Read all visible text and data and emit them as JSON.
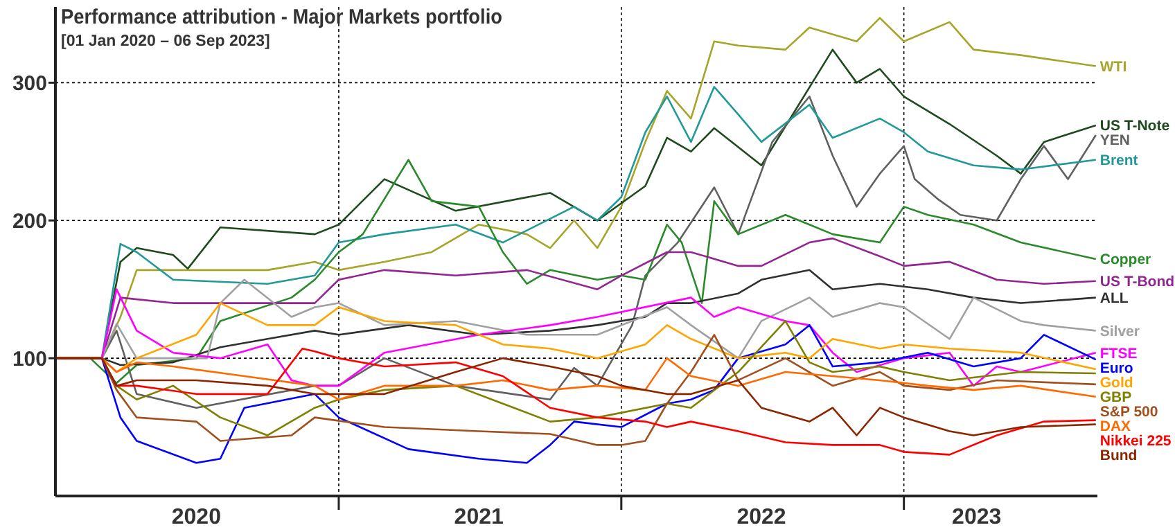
{
  "chart_data": {
    "type": "line",
    "title": "Performance attribution - Major Markets portfolio",
    "subtitle": "[01 Jan 2020 – 06 Sep 2023]",
    "xlim": [
      "2020-01-01",
      "2023-09-08"
    ],
    "ylim": [
      0,
      355
    ],
    "yticks": [
      100,
      200,
      300
    ],
    "xticks": [
      {
        "value": "2020-07-01",
        "label": "2020"
      },
      {
        "value": "2021-01-01",
        "label": null
      },
      {
        "value": "2021-07-01",
        "label": "2021"
      },
      {
        "value": "2022-01-01",
        "label": null
      },
      {
        "value": "2022-07-01",
        "label": "2022"
      },
      {
        "value": "2023-01-01",
        "label": null
      },
      {
        "value": "2023-04-05",
        "label": "2023"
      }
    ],
    "grid": true,
    "line_style": "solid",
    "marker": "none",
    "series": [
      {
        "name": "WTI",
        "color": "#a5a52a",
        "x": [
          "2020-01-01",
          "2020-03-01",
          "2020-03-25",
          "2020-04-15",
          "2020-07-01",
          "2020-10-01",
          "2020-12-01",
          "2021-01-01",
          "2021-03-01",
          "2021-05-01",
          "2021-07-01",
          "2021-09-01",
          "2021-10-01",
          "2021-11-01",
          "2021-12-01",
          "2022-01-01",
          "2022-02-01",
          "2022-03-01",
          "2022-04-01",
          "2022-05-01",
          "2022-06-01",
          "2022-08-01",
          "2022-09-01",
          "2022-11-01",
          "2022-12-01",
          "2023-01-01",
          "2023-03-01",
          "2023-04-01",
          "2023-06-01",
          "2023-09-06"
        ],
        "values": [
          100,
          100,
          130,
          164,
          164,
          164,
          170,
          164,
          170,
          177,
          197,
          190,
          180,
          200,
          180,
          210,
          257,
          294,
          274,
          330,
          327,
          324,
          340,
          330,
          347,
          330,
          344,
          324,
          320,
          312
        ]
      },
      {
        "name": "US T-Note",
        "color": "#1e4a1e",
        "x": [
          "2020-01-01",
          "2020-03-01",
          "2020-03-25",
          "2020-04-15",
          "2020-06-01",
          "2020-06-20",
          "2020-08-01",
          "2020-12-01",
          "2021-01-01",
          "2021-03-01",
          "2021-06-01",
          "2021-10-01",
          "2021-12-01",
          "2022-02-01",
          "2022-03-01",
          "2022-04-01",
          "2022-05-01",
          "2022-07-01",
          "2022-10-01",
          "2022-11-01",
          "2022-12-01",
          "2023-01-01",
          "2023-03-01",
          "2023-05-01",
          "2023-06-01",
          "2023-07-01",
          "2023-09-06"
        ],
        "values": [
          100,
          100,
          170,
          180,
          175,
          165,
          195,
          190,
          197,
          230,
          207,
          220,
          200,
          225,
          260,
          250,
          267,
          240,
          324,
          300,
          310,
          290,
          270,
          247,
          234,
          257,
          269
        ]
      },
      {
        "name": "YEN",
        "color": "#606060",
        "x": [
          "2020-01-01",
          "2020-03-01",
          "2020-03-20",
          "2020-04-15",
          "2020-07-01",
          "2020-12-01",
          "2021-01-01",
          "2021-03-01",
          "2021-06-01",
          "2021-10-01",
          "2021-11-01",
          "2021-12-01",
          "2022-01-15",
          "2022-02-01",
          "2022-03-15",
          "2022-05-01",
          "2022-06-01",
          "2022-07-15",
          "2022-09-01",
          "2022-10-01",
          "2022-11-01",
          "2022-12-01",
          "2023-01-01",
          "2023-01-15",
          "2023-02-15",
          "2023-03-15",
          "2023-05-01",
          "2023-06-01",
          "2023-07-01",
          "2023-08-01",
          "2023-09-06"
        ],
        "values": [
          100,
          100,
          120,
          74,
          64,
          80,
          80,
          100,
          80,
          70,
          93,
          80,
          124,
          160,
          184,
          224,
          190,
          257,
          290,
          247,
          210,
          234,
          254,
          230,
          215,
          204,
          200,
          230,
          254,
          230,
          262
        ]
      },
      {
        "name": "Brent",
        "color": "#219999",
        "x": [
          "2020-01-01",
          "2020-03-01",
          "2020-03-25",
          "2020-04-15",
          "2020-06-01",
          "2020-10-01",
          "2020-12-01",
          "2021-01-01",
          "2021-03-01",
          "2021-06-01",
          "2021-08-01",
          "2021-11-01",
          "2021-12-01",
          "2022-01-01",
          "2022-02-01",
          "2022-03-01",
          "2022-04-01",
          "2022-05-01",
          "2022-06-01",
          "2022-07-01",
          "2022-09-01",
          "2022-10-01",
          "2022-12-01",
          "2023-01-01",
          "2023-02-01",
          "2023-04-01",
          "2023-06-01",
          "2023-09-06"
        ],
        "values": [
          100,
          100,
          183,
          177,
          157,
          154,
          160,
          184,
          190,
          197,
          184,
          210,
          200,
          217,
          264,
          290,
          257,
          297,
          277,
          257,
          284,
          260,
          274,
          264,
          250,
          240,
          237,
          244
        ]
      },
      {
        "name": "Copper",
        "color": "#2a8a2a",
        "x": [
          "2020-01-01",
          "2020-02-15",
          "2020-03-20",
          "2020-04-15",
          "2020-07-01",
          "2020-08-01",
          "2020-11-01",
          "2020-12-01",
          "2021-01-01",
          "2021-02-01",
          "2021-04-01",
          "2021-05-01",
          "2021-07-01",
          "2021-08-01",
          "2021-09-01",
          "2021-10-01",
          "2021-12-01",
          "2022-01-01",
          "2022-02-01",
          "2022-03-01",
          "2022-03-20",
          "2022-04-15",
          "2022-05-01",
          "2022-06-01",
          "2022-08-01",
          "2022-09-01",
          "2022-10-01",
          "2022-12-01",
          "2023-01-01",
          "2023-02-01",
          "2023-04-01",
          "2023-06-01",
          "2023-09-06"
        ],
        "values": [
          100,
          100,
          82,
          95,
          100,
          127,
          144,
          157,
          177,
          190,
          244,
          214,
          210,
          177,
          154,
          164,
          157,
          160,
          157,
          197,
          184,
          140,
          214,
          190,
          204,
          197,
          190,
          184,
          210,
          204,
          197,
          184,
          172
        ]
      },
      {
        "name": "US T-Bond",
        "color": "#932593",
        "x": [
          "2020-01-01",
          "2020-03-01",
          "2020-03-25",
          "2020-06-01",
          "2020-12-01",
          "2021-01-01",
          "2021-03-01",
          "2021-06-01",
          "2021-09-01",
          "2021-12-01",
          "2022-01-01",
          "2022-03-01",
          "2022-04-01",
          "2022-06-01",
          "2022-07-01",
          "2022-09-01",
          "2022-10-01",
          "2022-12-01",
          "2023-01-01",
          "2023-03-01",
          "2023-05-01",
          "2023-07-01",
          "2023-09-06"
        ],
        "values": [
          100,
          100,
          144,
          140,
          140,
          157,
          164,
          160,
          164,
          150,
          160,
          177,
          177,
          167,
          167,
          184,
          187,
          174,
          167,
          170,
          157,
          154,
          156
        ]
      },
      {
        "name": "ALL",
        "color": "#303030",
        "x": [
          "2020-01-01",
          "2020-03-01",
          "2020-03-25",
          "2020-06-01",
          "2020-08-01",
          "2020-10-01",
          "2020-12-01",
          "2021-01-01",
          "2021-04-01",
          "2021-07-01",
          "2021-10-01",
          "2021-12-01",
          "2022-02-01",
          "2022-03-01",
          "2022-04-01",
          "2022-06-01",
          "2022-07-01",
          "2022-09-01",
          "2022-10-01",
          "2022-12-01",
          "2023-02-01",
          "2023-04-01",
          "2023-06-01",
          "2023-09-06"
        ],
        "values": [
          100,
          100,
          95,
          97,
          108,
          114,
          120,
          117,
          124,
          117,
          120,
          124,
          130,
          140,
          140,
          147,
          157,
          164,
          150,
          154,
          150,
          144,
          140,
          144
        ]
      },
      {
        "name": "Silver",
        "color": "#a0a0a0",
        "x": [
          "2020-01-01",
          "2020-03-01",
          "2020-03-20",
          "2020-04-15",
          "2020-07-15",
          "2020-08-01",
          "2020-09-01",
          "2020-11-01",
          "2020-12-01",
          "2021-01-01",
          "2021-03-01",
          "2021-06-01",
          "2021-09-01",
          "2021-12-01",
          "2022-03-01",
          "2022-04-01",
          "2022-06-01",
          "2022-07-01",
          "2022-09-01",
          "2022-10-01",
          "2022-12-01",
          "2023-01-01",
          "2023-03-01",
          "2023-04-01",
          "2023-06-01",
          "2023-07-01",
          "2023-09-06"
        ],
        "values": [
          100,
          100,
          125,
          100,
          100,
          140,
          157,
          130,
          137,
          140,
          124,
          127,
          117,
          117,
          137,
          124,
          100,
          127,
          144,
          130,
          140,
          137,
          114,
          144,
          127,
          124,
          120
        ]
      },
      {
        "name": "FTSE",
        "color": "#ff00ff",
        "x": [
          "2020-01-01",
          "2020-03-01",
          "2020-03-20",
          "2020-04-15",
          "2020-06-01",
          "2020-08-01",
          "2020-10-01",
          "2020-11-01",
          "2020-12-01",
          "2021-01-01",
          "2021-03-01",
          "2021-07-01",
          "2021-10-01",
          "2021-12-01",
          "2022-04-01",
          "2022-05-01",
          "2022-06-01",
          "2022-08-01",
          "2022-09-01",
          "2022-10-01",
          "2022-11-01",
          "2023-01-01",
          "2023-03-01",
          "2023-04-01",
          "2023-05-01",
          "2023-06-01",
          "2023-09-06"
        ],
        "values": [
          100,
          100,
          150,
          120,
          104,
          100,
          110,
          84,
          80,
          80,
          104,
          117,
          124,
          130,
          144,
          130,
          137,
          127,
          124,
          104,
          90,
          100,
          104,
          80,
          94,
          90,
          104
        ]
      },
      {
        "name": "Euro",
        "color": "#0000ff",
        "x": [
          "2020-01-01",
          "2020-03-01",
          "2020-03-25",
          "2020-04-15",
          "2020-07-01",
          "2020-08-01",
          "2020-09-01",
          "2020-12-01",
          "2021-01-01",
          "2021-04-01",
          "2021-07-01",
          "2021-09-01",
          "2021-10-01",
          "2021-11-01",
          "2022-01-01",
          "2022-03-01",
          "2022-04-01",
          "2022-05-01",
          "2022-06-01",
          "2022-08-01",
          "2022-09-01",
          "2022-10-01",
          "2022-12-01",
          "2023-02-01",
          "2023-04-01",
          "2023-06-01",
          "2023-07-01",
          "2023-09-06"
        ],
        "values": [
          100,
          100,
          57,
          40,
          24,
          27,
          64,
          74,
          57,
          34,
          27,
          24,
          37,
          54,
          50,
          67,
          70,
          77,
          100,
          110,
          124,
          94,
          97,
          104,
          94,
          100,
          117,
          99
        ]
      },
      {
        "name": "Gold",
        "color": "#ffa500",
        "x": [
          "2020-01-01",
          "2020-03-01",
          "2020-03-20",
          "2020-04-15",
          "2020-07-01",
          "2020-08-01",
          "2020-10-01",
          "2020-12-01",
          "2021-01-01",
          "2021-03-01",
          "2021-06-01",
          "2021-08-01",
          "2021-10-01",
          "2021-12-01",
          "2022-02-01",
          "2022-03-01",
          "2022-04-01",
          "2022-06-01",
          "2022-08-01",
          "2022-09-01",
          "2022-10-01",
          "2022-12-01",
          "2023-01-01",
          "2023-03-01",
          "2023-06-01",
          "2023-09-06"
        ],
        "values": [
          100,
          100,
          90,
          100,
          117,
          140,
          124,
          124,
          137,
          127,
          124,
          110,
          107,
          100,
          110,
          124,
          114,
          100,
          104,
          100,
          114,
          107,
          110,
          107,
          104,
          92
        ]
      },
      {
        "name": "GBP",
        "color": "#808000",
        "x": [
          "2020-01-01",
          "2020-03-01",
          "2020-03-20",
          "2020-04-15",
          "2020-06-01",
          "2020-08-01",
          "2020-10-01",
          "2020-12-01",
          "2021-01-01",
          "2021-03-01",
          "2021-06-01",
          "2021-08-01",
          "2021-10-01",
          "2021-12-01",
          "2022-03-01",
          "2022-04-01",
          "2022-06-01",
          "2022-08-01",
          "2022-09-01",
          "2022-10-01",
          "2022-12-01",
          "2023-01-01",
          "2023-03-01",
          "2023-06-01",
          "2023-09-06"
        ],
        "values": [
          100,
          100,
          80,
          70,
          80,
          57,
          44,
          64,
          70,
          77,
          80,
          67,
          54,
          57,
          67,
          64,
          90,
          127,
          97,
          90,
          94,
          90,
          84,
          90,
          89
        ]
      },
      {
        "name": "S&P 500",
        "color": "#a0501e",
        "x": [
          "2020-01-01",
          "2020-03-01",
          "2020-03-20",
          "2020-04-15",
          "2020-07-01",
          "2020-08-01",
          "2020-11-01",
          "2020-12-01",
          "2021-03-01",
          "2021-07-01",
          "2021-10-01",
          "2021-12-01",
          "2022-01-01",
          "2022-02-01",
          "2022-03-01",
          "2022-04-01",
          "2022-05-01",
          "2022-06-01",
          "2022-08-01",
          "2022-10-01",
          "2022-12-01",
          "2023-01-01",
          "2023-03-01",
          "2023-05-01",
          "2023-09-06"
        ],
        "values": [
          100,
          100,
          77,
          57,
          54,
          40,
          44,
          57,
          50,
          47,
          45,
          37,
          37,
          40,
          67,
          90,
          117,
          84,
          100,
          80,
          90,
          80,
          77,
          84,
          81
        ]
      },
      {
        "name": "DAX",
        "color": "#ff6a00",
        "x": [
          "2020-01-01",
          "2020-03-01",
          "2020-03-20",
          "2020-04-15",
          "2020-06-01",
          "2020-09-01",
          "2020-12-01",
          "2021-01-01",
          "2021-03-01",
          "2021-06-01",
          "2021-08-01",
          "2021-10-01",
          "2021-12-01",
          "2022-02-01",
          "2022-03-01",
          "2022-04-01",
          "2022-06-01",
          "2022-08-01",
          "2022-10-01",
          "2022-12-01",
          "2023-02-01",
          "2023-04-01",
          "2023-06-01",
          "2023-09-06"
        ],
        "values": [
          100,
          100,
          90,
          97,
          94,
          87,
          80,
          70,
          80,
          80,
          84,
          77,
          80,
          77,
          100,
          87,
          80,
          90,
          87,
          84,
          80,
          77,
          80,
          72
        ]
      },
      {
        "name": "Nikkei 225",
        "color": "#ff0000",
        "x": [
          "2020-01-01",
          "2020-03-01",
          "2020-03-20",
          "2020-04-15",
          "2020-07-01",
          "2020-10-01",
          "2020-11-15",
          "2020-12-01",
          "2021-01-01",
          "2021-03-01",
          "2021-06-01",
          "2021-08-01",
          "2021-10-01",
          "2021-12-01",
          "2022-02-01",
          "2022-03-01",
          "2022-04-01",
          "2022-06-01",
          "2022-08-01",
          "2022-10-01",
          "2022-12-01",
          "2023-01-01",
          "2023-03-01",
          "2023-05-01",
          "2023-07-01",
          "2023-09-06"
        ],
        "values": [
          100,
          100,
          80,
          80,
          74,
          74,
          107,
          105,
          100,
          94,
          97,
          87,
          64,
          57,
          54,
          50,
          54,
          47,
          39,
          37,
          37,
          32,
          30,
          44,
          54,
          55
        ]
      },
      {
        "name": "Bund",
        "color": "#8b2500",
        "x": [
          "2020-01-01",
          "2020-03-01",
          "2020-03-20",
          "2020-04-15",
          "2020-07-01",
          "2020-10-01",
          "2020-12-01",
          "2021-03-01",
          "2021-06-01",
          "2021-08-01",
          "2021-10-01",
          "2021-12-01",
          "2022-01-01",
          "2022-03-01",
          "2022-04-01",
          "2022-06-01",
          "2022-07-01",
          "2022-09-01",
          "2022-10-01",
          "2022-11-01",
          "2022-12-01",
          "2023-01-01",
          "2023-03-01",
          "2023-04-01",
          "2023-06-01",
          "2023-09-06"
        ],
        "values": [
          100,
          100,
          80,
          84,
          84,
          80,
          74,
          74,
          90,
          100,
          94,
          87,
          80,
          74,
          74,
          84,
          64,
          54,
          64,
          44,
          64,
          57,
          47,
          44,
          50,
          52
        ]
      }
    ]
  }
}
